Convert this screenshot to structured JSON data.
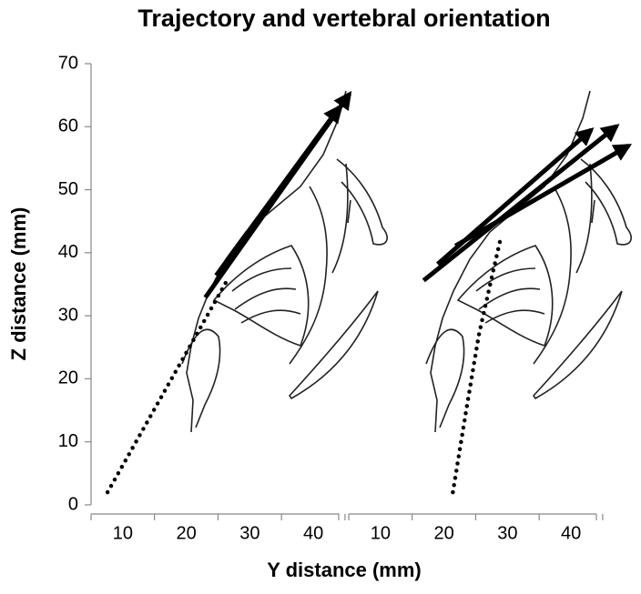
{
  "chart_data": {
    "type": "line",
    "title": "Trajectory and vertebral orientation",
    "x_label": "Y distance (mm)",
    "y_label": "Z distance (mm)",
    "ylim": [
      0,
      70
    ],
    "yticks": [
      0,
      10,
      20,
      30,
      40,
      50,
      60,
      70
    ],
    "color": "#000000",
    "panels": [
      {
        "xlim": [
          5,
          44
        ],
        "xticks": [
          10,
          20,
          30,
          40
        ],
        "trajectory": {
          "x": [
            7.6,
            26.3
          ],
          "values": [
            2,
            35.4
          ]
        },
        "arrows": [
          {
            "x": [
              23,
              45.7
            ],
            "values": [
              32.9,
              65.2
            ]
          },
          {
            "x": [
              24.7,
              44.1
            ],
            "values": [
              36.4,
              63.1
            ]
          }
        ]
      },
      {
        "xlim": [
          5,
          44
        ],
        "xticks": [
          10,
          20,
          30,
          40
        ],
        "trajectory": {
          "x": [
            21.4,
            23.5,
            25.5,
            27.5,
            29
          ],
          "values": [
            2,
            15,
            27,
            36,
            42.6
          ]
        },
        "arrows": [
          {
            "x": [
              16.8,
              47.2
            ],
            "values": [
              35.6,
              60.1
            ]
          },
          {
            "x": [
              19,
              43.2
            ],
            "values": [
              38.2,
              59.5
            ]
          },
          {
            "x": [
              21.8,
              49.1
            ],
            "values": [
              41.1,
              57
            ]
          }
        ]
      }
    ]
  }
}
